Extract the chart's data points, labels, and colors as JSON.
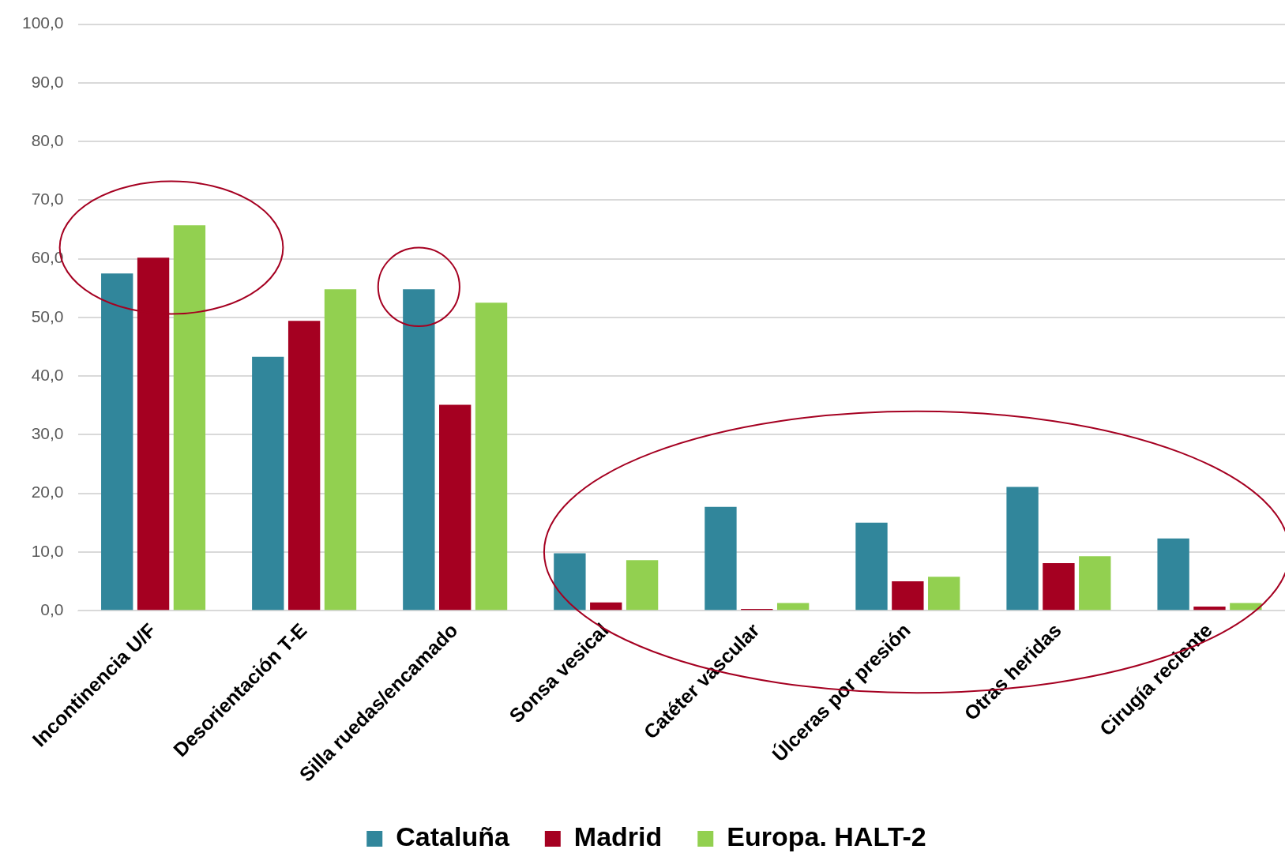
{
  "chart_data": {
    "type": "bar",
    "categories": [
      "Incontinencia U/F",
      "Desorientación T-E",
      "Silla ruedas/encamado",
      "Sonsa vesical",
      "Catéter vascular",
      "Úlceras por presión",
      "Otras heridas",
      "Cirugía reciente"
    ],
    "series": [
      {
        "name": "Cataluña",
        "color": "#31869b",
        "values": [
          57.5,
          43.3,
          54.8,
          9.8,
          17.7,
          15.0,
          21.1,
          12.3
        ]
      },
      {
        "name": "Madrid",
        "color": "#a50021",
        "values": [
          60.2,
          49.4,
          35.1,
          1.4,
          0.3,
          5.0,
          8.1,
          0.7
        ]
      },
      {
        "name": "Europa. HALT-2",
        "color": "#92d050",
        "values": [
          65.7,
          54.8,
          52.5,
          8.6,
          1.3,
          5.8,
          9.3,
          1.3
        ]
      }
    ],
    "ylim": [
      0,
      100
    ],
    "yticks": [
      {
        "value": 0,
        "label": "0,0"
      },
      {
        "value": 10,
        "label": "10,0"
      },
      {
        "value": 20,
        "label": "20,0"
      },
      {
        "value": 30,
        "label": "30,0"
      },
      {
        "value": 40,
        "label": "40,0"
      },
      {
        "value": 50,
        "label": "50,0"
      },
      {
        "value": 60,
        "label": "60,0"
      },
      {
        "value": 70,
        "label": "70,0"
      },
      {
        "value": 80,
        "label": "80,0"
      },
      {
        "value": 90,
        "label": "90,0"
      },
      {
        "value": 100,
        "label": "100,0"
      }
    ],
    "grid": "y",
    "legend": "bottom"
  }
}
